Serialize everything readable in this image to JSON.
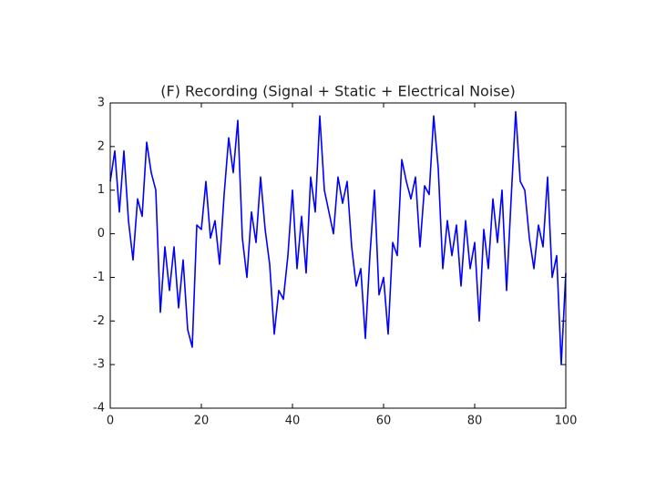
{
  "chart_data": {
    "type": "line",
    "title": "(F) Recording (Signal + Static + Electrical Noise)",
    "x": [
      0,
      1,
      2,
      3,
      4,
      5,
      6,
      7,
      8,
      9,
      10,
      11,
      12,
      13,
      14,
      15,
      16,
      17,
      18,
      19,
      20,
      21,
      22,
      23,
      24,
      25,
      26,
      27,
      28,
      29,
      30,
      31,
      32,
      33,
      34,
      35,
      36,
      37,
      38,
      39,
      40,
      41,
      42,
      43,
      44,
      45,
      46,
      47,
      48,
      49,
      50,
      51,
      52,
      53,
      54,
      55,
      56,
      57,
      58,
      59,
      60,
      61,
      62,
      63,
      64,
      65,
      66,
      67,
      68,
      69,
      70,
      71,
      72,
      73,
      74,
      75,
      76,
      77,
      78,
      79,
      80,
      81,
      82,
      83,
      84,
      85,
      86,
      87,
      88,
      89,
      90,
      91,
      92,
      93,
      94,
      95,
      96,
      97,
      98,
      99,
      100
    ],
    "series": [
      {
        "name": "Recording",
        "color": "#0000ff",
        "values": [
          1.2,
          1.9,
          0.5,
          1.9,
          0.3,
          -0.6,
          0.8,
          0.4,
          2.1,
          1.4,
          1.0,
          -1.8,
          -0.3,
          -1.3,
          -0.3,
          -1.7,
          -0.6,
          -2.2,
          -2.6,
          0.2,
          0.1,
          1.2,
          -0.1,
          0.3,
          -0.7,
          0.9,
          2.2,
          1.4,
          2.6,
          -0.1,
          -1.0,
          0.5,
          -0.2,
          1.3,
          0.1,
          -0.7,
          -2.3,
          -1.3,
          -1.5,
          -0.5,
          1.0,
          -0.8,
          0.4,
          -0.9,
          1.3,
          0.5,
          2.7,
          1.0,
          0.5,
          0.0,
          1.3,
          0.7,
          1.2,
          -0.3,
          -1.2,
          -0.8,
          -2.4,
          -0.5,
          1.0,
          -1.4,
          -1.0,
          -2.3,
          -0.2,
          -0.5,
          1.7,
          1.2,
          0.8,
          1.3,
          -0.3,
          1.1,
          0.9,
          2.7,
          1.5,
          -0.8,
          0.3,
          -0.5,
          0.2,
          -1.2,
          0.3,
          -0.8,
          -0.2,
          -2.0,
          0.1,
          -0.8,
          0.8,
          -0.2,
          1.0,
          -1.3,
          0.8,
          2.8,
          1.2,
          1.0,
          -0.1,
          -0.8,
          0.2,
          -0.3,
          1.3,
          -1.0,
          -0.5,
          -3.0,
          -0.9
        ]
      }
    ],
    "xlim": [
      0,
      100
    ],
    "xticks": [
      0,
      20,
      40,
      60,
      80,
      100
    ],
    "ylim": [
      -4,
      3
    ],
    "yticks": [
      -4,
      -3,
      -2,
      -1,
      0,
      1,
      2,
      3
    ]
  }
}
